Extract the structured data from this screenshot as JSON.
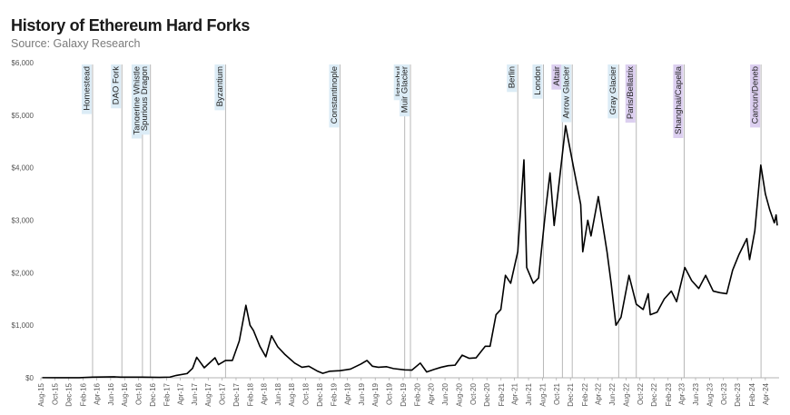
{
  "header": {
    "title": "History of Ethereum Hard Forks",
    "subtitle": "Source: Galaxy Research"
  },
  "colors": {
    "line": "#000000",
    "fork_line": "#b0b0b0",
    "label_blue": "#dcecf6",
    "label_purple": "#dccff0"
  },
  "chart_data": {
    "type": "line",
    "title": "History of Ethereum Hard Forks",
    "xlabel": "",
    "ylabel": "",
    "ylim": [
      0,
      6000
    ],
    "xlim": [
      "2015-08",
      "2024-05"
    ],
    "y_ticks": [
      "$0",
      "$1,000",
      "$2,000",
      "$3,000",
      "$4,000",
      "$5,000",
      "$6,000"
    ],
    "x_ticks": [
      "Aug-15",
      "Oct-15",
      "Dec-15",
      "Feb-16",
      "Apr-16",
      "Jun-16",
      "Aug-16",
      "Oct-16",
      "Dec-16",
      "Feb-17",
      "Apr-17",
      "Jun-17",
      "Aug-17",
      "Oct-17",
      "Dec-17",
      "Feb-18",
      "Apr-18",
      "Jun-18",
      "Aug-18",
      "Oct-18",
      "Dec-18",
      "Feb-19",
      "Apr-19",
      "Jun-19",
      "Aug-19",
      "Oct-19",
      "Dec-19",
      "Feb-20",
      "Apr-20",
      "Jun-20",
      "Aug-20",
      "Oct-20",
      "Dec-20",
      "Feb-21",
      "Apr-21",
      "Jun-21",
      "Aug-21",
      "Oct-21",
      "Dec-21",
      "Feb-22",
      "Apr-22",
      "Jun-22",
      "Aug-22",
      "Oct-22",
      "Dec-22",
      "Feb-23",
      "Apr-23",
      "Jun-23",
      "Aug-23",
      "Oct-23",
      "Dec-23",
      "Feb-24",
      "Apr-24"
    ],
    "grid": false,
    "legend": "none",
    "series": [
      {
        "points": [
          [
            "2015-08-07",
            2
          ],
          [
            "2015-10-15",
            0.5
          ],
          [
            "2016-01-15",
            1
          ],
          [
            "2016-03-14",
            12
          ],
          [
            "2016-06-15",
            19
          ],
          [
            "2016-07-15",
            11
          ],
          [
            "2016-10-15",
            12
          ],
          [
            "2016-12-31",
            8
          ],
          [
            "2017-02-15",
            13
          ],
          [
            "2017-03-15",
            45
          ],
          [
            "2017-05-01",
            80
          ],
          [
            "2017-05-25",
            180
          ],
          [
            "2017-06-12",
            390
          ],
          [
            "2017-07-15",
            190
          ],
          [
            "2017-08-31",
            380
          ],
          [
            "2017-09-15",
            250
          ],
          [
            "2017-10-16",
            330
          ],
          [
            "2017-11-15",
            330
          ],
          [
            "2017-12-15",
            700
          ],
          [
            "2018-01-13",
            1380
          ],
          [
            "2018-01-31",
            1000
          ],
          [
            "2018-02-15",
            900
          ],
          [
            "2018-03-15",
            600
          ],
          [
            "2018-04-10",
            400
          ],
          [
            "2018-05-05",
            800
          ],
          [
            "2018-06-01",
            590
          ],
          [
            "2018-07-01",
            450
          ],
          [
            "2018-08-14",
            280
          ],
          [
            "2018-09-15",
            200
          ],
          [
            "2018-10-15",
            220
          ],
          [
            "2018-11-20",
            130
          ],
          [
            "2018-12-15",
            85
          ],
          [
            "2019-01-15",
            125
          ],
          [
            "2019-02-28",
            135
          ],
          [
            "2019-04-15",
            165
          ],
          [
            "2019-05-30",
            260
          ],
          [
            "2019-06-26",
            330
          ],
          [
            "2019-07-20",
            220
          ],
          [
            "2019-08-15",
            200
          ],
          [
            "2019-09-20",
            210
          ],
          [
            "2019-10-20",
            175
          ],
          [
            "2019-12-08",
            150
          ],
          [
            "2020-01-08",
            145
          ],
          [
            "2020-02-14",
            280
          ],
          [
            "2020-03-13",
            110
          ],
          [
            "2020-04-15",
            160
          ],
          [
            "2020-05-15",
            200
          ],
          [
            "2020-06-15",
            230
          ],
          [
            "2020-07-15",
            240
          ],
          [
            "2020-08-15",
            430
          ],
          [
            "2020-09-15",
            370
          ],
          [
            "2020-10-15",
            380
          ],
          [
            "2020-11-24",
            600
          ],
          [
            "2020-12-15",
            600
          ],
          [
            "2021-01-10",
            1200
          ],
          [
            "2021-01-31",
            1300
          ],
          [
            "2021-02-20",
            1950
          ],
          [
            "2021-03-15",
            1800
          ],
          [
            "2021-04-15",
            2400
          ],
          [
            "2021-05-12",
            4150
          ],
          [
            "2021-05-24",
            2100
          ],
          [
            "2021-06-22",
            1800
          ],
          [
            "2021-07-15",
            1900
          ],
          [
            "2021-08-15",
            3200
          ],
          [
            "2021-09-03",
            3900
          ],
          [
            "2021-09-21",
            2900
          ],
          [
            "2021-10-15",
            3800
          ],
          [
            "2021-11-10",
            4800
          ],
          [
            "2021-12-15",
            4000
          ],
          [
            "2022-01-15",
            3300
          ],
          [
            "2022-01-24",
            2400
          ],
          [
            "2022-02-15",
            3000
          ],
          [
            "2022-03-01",
            2700
          ],
          [
            "2022-04-02",
            3450
          ],
          [
            "2022-05-10",
            2400
          ],
          [
            "2022-05-28",
            1800
          ],
          [
            "2022-06-18",
            1000
          ],
          [
            "2022-07-10",
            1150
          ],
          [
            "2022-08-14",
            1950
          ],
          [
            "2022-09-15",
            1400
          ],
          [
            "2022-10-15",
            1300
          ],
          [
            "2022-11-06",
            1600
          ],
          [
            "2022-11-15",
            1200
          ],
          [
            "2022-12-15",
            1250
          ],
          [
            "2023-01-15",
            1500
          ],
          [
            "2023-02-15",
            1650
          ],
          [
            "2023-03-10",
            1450
          ],
          [
            "2023-04-15",
            2100
          ],
          [
            "2023-05-15",
            1850
          ],
          [
            "2023-06-15",
            1700
          ],
          [
            "2023-07-15",
            1950
          ],
          [
            "2023-08-17",
            1650
          ],
          [
            "2023-09-15",
            1620
          ],
          [
            "2023-10-15",
            1600
          ],
          [
            "2023-11-10",
            2050
          ],
          [
            "2023-12-08",
            2350
          ],
          [
            "2024-01-11",
            2650
          ],
          [
            "2024-01-23",
            2250
          ],
          [
            "2024-02-15",
            2800
          ],
          [
            "2024-03-12",
            4050
          ],
          [
            "2024-04-01",
            3500
          ],
          [
            "2024-04-20",
            3200
          ],
          [
            "2024-05-10",
            2950
          ],
          [
            "2024-05-18",
            3100
          ],
          [
            "2024-05-23",
            2900
          ]
        ]
      }
    ],
    "forks": [
      {
        "name": "Homestead",
        "date": "2016-03-14",
        "highlight": "blue"
      },
      {
        "name": "DAO Fork",
        "date": "2016-07-20",
        "highlight": "blue"
      },
      {
        "name": "Tangerine Whistle",
        "date": "2016-10-18",
        "highlight": "blue"
      },
      {
        "name": "Spurious Dragon",
        "date": "2016-11-22",
        "highlight": "blue"
      },
      {
        "name": "Byzantium",
        "date": "2017-10-16",
        "highlight": "blue"
      },
      {
        "name": "Constantinople",
        "date": "2019-02-28",
        "highlight": "blue"
      },
      {
        "name": "Istanbul",
        "date": "2019-12-08",
        "highlight": "blue"
      },
      {
        "name": "Muir Glacier",
        "date": "2020-01-02",
        "highlight": "blue"
      },
      {
        "name": "Berlin",
        "date": "2021-04-15",
        "highlight": "blue"
      },
      {
        "name": "London",
        "date": "2021-08-05",
        "highlight": "blue"
      },
      {
        "name": "Altair",
        "date": "2021-10-27",
        "highlight": "purple"
      },
      {
        "name": "Arrow Glacier",
        "date": "2021-12-09",
        "highlight": "blue"
      },
      {
        "name": "Gray Glacier",
        "date": "2022-06-30",
        "highlight": "blue"
      },
      {
        "name": "Paris/Bellatrix",
        "date": "2022-09-15",
        "highlight": "purple"
      },
      {
        "name": "Shanghai/Capella",
        "date": "2023-04-12",
        "highlight": "purple"
      },
      {
        "name": "Cancun/Deneb",
        "date": "2024-03-13",
        "highlight": "purple"
      }
    ]
  }
}
